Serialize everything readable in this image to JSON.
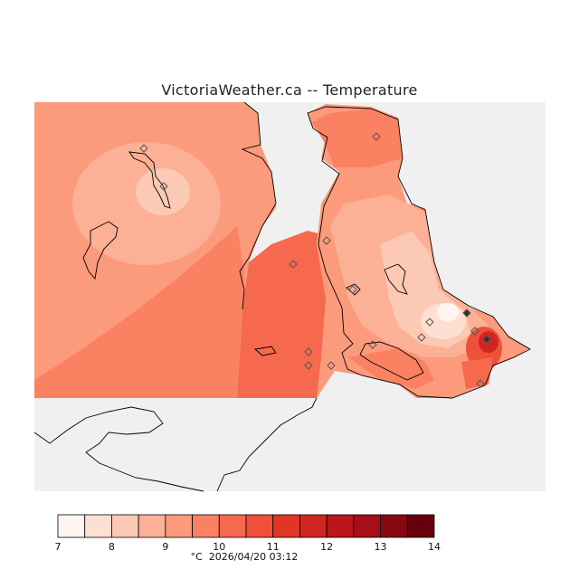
{
  "header": {
    "title": "VictoriaWeather.ca  --  Temperature"
  },
  "legend": {
    "ticks": [
      "7",
      "8",
      "9",
      "10",
      "11",
      "12",
      "13",
      "14"
    ],
    "min": 7,
    "max": 14,
    "step": 0.5,
    "colors": [
      "#fff5f0",
      "#fee0d2",
      "#fcc9b4",
      "#fcb095",
      "#fc9a7c",
      "#fb8163",
      "#f6694f",
      "#ef5039",
      "#e23528",
      "#d12521",
      "#bd1519",
      "#a50f15",
      "#880812",
      "#67000d"
    ],
    "unit_label": "°C",
    "timestamp": "2026/04/20 03:12"
  },
  "map_colors": {
    "no_data": "#f0f0f0",
    "outline": "#000000",
    "station_marker": "#555555"
  }
}
